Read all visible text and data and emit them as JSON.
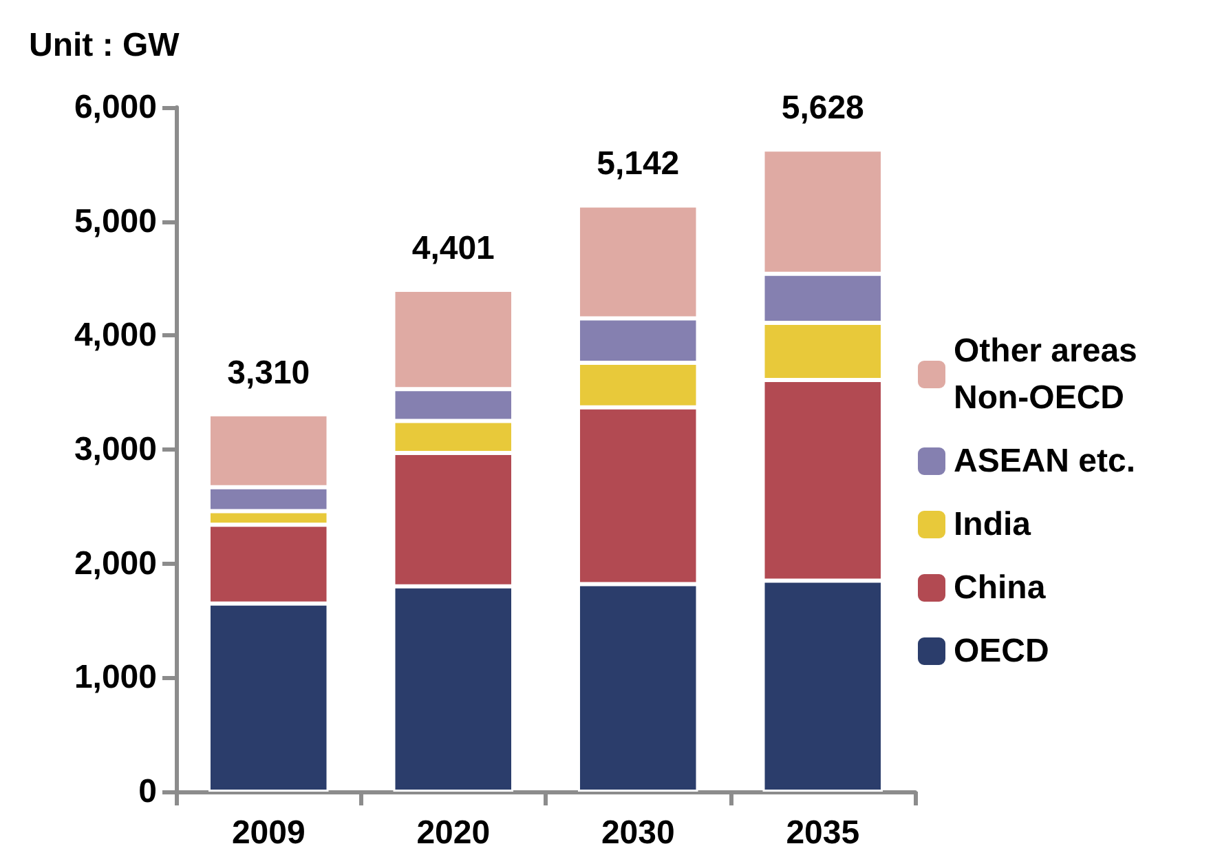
{
  "chart_data": {
    "type": "bar",
    "stacked": true,
    "ylabel": "Unit : GW",
    "categories": [
      "2009",
      "2020",
      "2030",
      "2035"
    ],
    "series": [
      {
        "name": "OECD",
        "color": "#2b3d6b",
        "values": [
          1650,
          1800,
          1820,
          1850
        ]
      },
      {
        "name": "China",
        "color": "#b24a52",
        "values": [
          690,
          1170,
          1550,
          1760
        ]
      },
      {
        "name": "India",
        "color": "#e8c93a",
        "values": [
          120,
          280,
          390,
          500
        ]
      },
      {
        "name": "ASEAN etc.",
        "color": "#8580b0",
        "values": [
          210,
          280,
          390,
          430
        ]
      },
      {
        "name": "Other areas Non-OECD",
        "color": "#dfaaa3",
        "values": [
          640,
          870,
          990,
          1090
        ]
      }
    ],
    "totals": [
      "3,310",
      "4,401",
      "5,142",
      "5,628"
    ],
    "ylim": [
      0,
      6000
    ],
    "yticks": [
      0,
      {
        "value": 1000,
        "label": "1,000"
      },
      {
        "value": 2000,
        "label": "2,000"
      },
      {
        "value": 3000,
        "label": "3,000"
      },
      {
        "value": 4000,
        "label": "4,000"
      },
      {
        "value": 5000,
        "label": "5,000"
      },
      {
        "value": 6000,
        "label": "6,000"
      }
    ],
    "grid": false,
    "legend": "right"
  }
}
